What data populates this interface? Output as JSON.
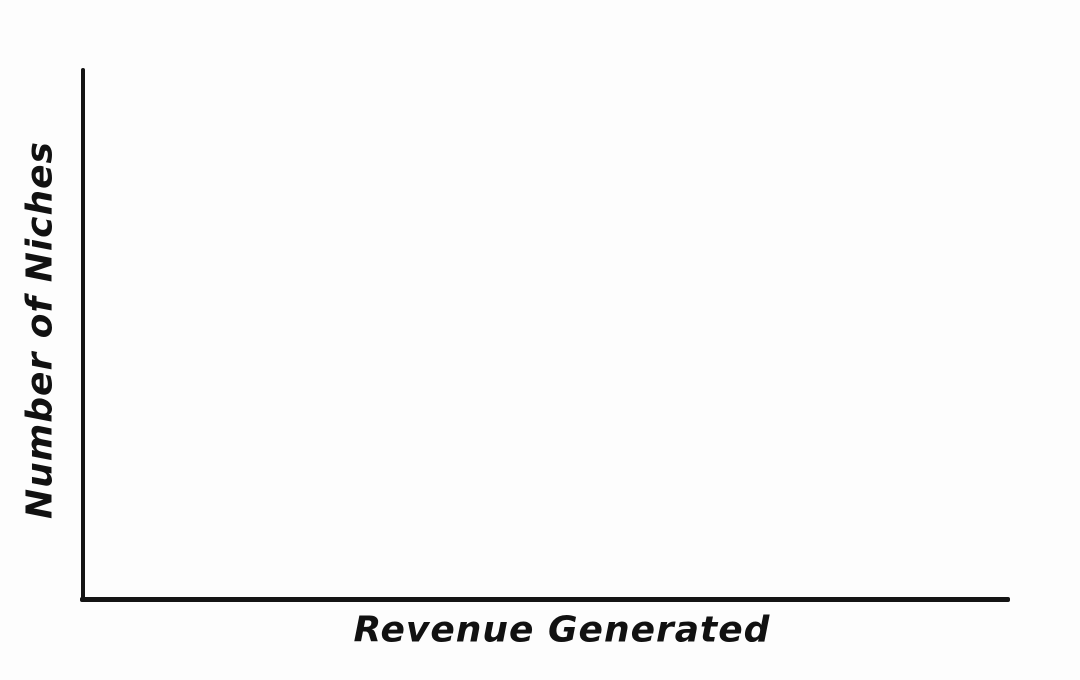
{
  "chart_data": {
    "type": "line",
    "title": "",
    "xlabel": "Revenue Generated",
    "ylabel": "Number of Niches",
    "categories": [],
    "series": [],
    "x_ticks": [],
    "y_ticks": [],
    "grid": false,
    "legend": false,
    "axis_color": "#141414",
    "label_color": "#111111",
    "background_color": "#fdfdfd",
    "style": "hand-drawn marker sketch, empty axes with no plotted data"
  }
}
